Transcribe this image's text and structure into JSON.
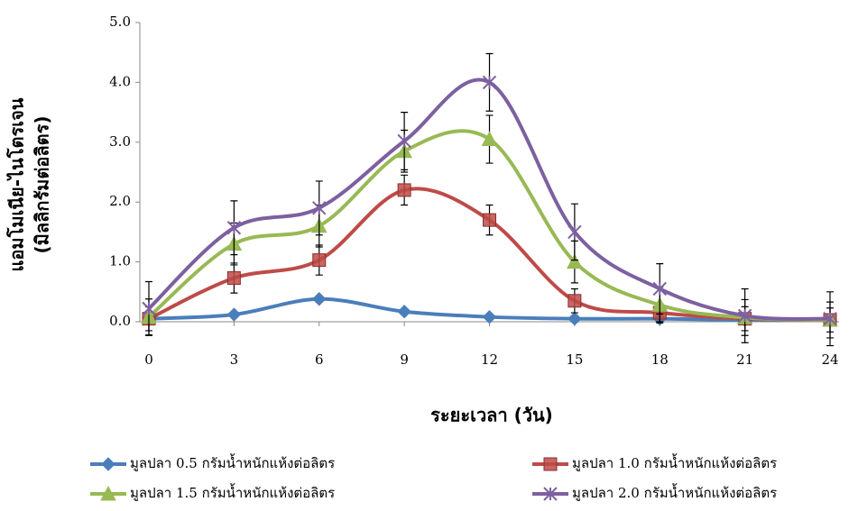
{
  "chart_data": {
    "type": "line",
    "x_label": "ระยะเวลา (วัน)",
    "y_label": [
      "แอมโมเนีย-ไนโตรเจน",
      "(มิลลิกรัมต่อลิตร)"
    ],
    "x": [
      0,
      3,
      6,
      9,
      12,
      15,
      18,
      21,
      24
    ],
    "xlim": [
      0,
      24
    ],
    "xticks": [
      0,
      3,
      6,
      9,
      12,
      15,
      18,
      21,
      24
    ],
    "ylim": [
      0,
      5
    ],
    "yticks": [
      {
        "value": 0,
        "label": "0.0"
      },
      {
        "value": 1,
        "label": "1.0"
      },
      {
        "value": 2,
        "label": "2.0"
      },
      {
        "value": 3,
        "label": "3.0"
      },
      {
        "value": 4,
        "label": "4.0"
      },
      {
        "value": 5,
        "label": "5.0"
      }
    ],
    "smooth": true,
    "series": [
      {
        "name": "มูลปลา 0.5 กรัมน้ำหนักแห้งต่อลิตร",
        "color": "#4a7ebb",
        "marker": "diamond",
        "values": [
          0.05,
          0.12,
          0.38,
          0.17,
          0.08,
          0.05,
          0.05,
          0.03,
          0.03
        ],
        "errors": [
          0.03,
          0.04,
          0.05,
          0.04,
          0.03,
          0.02,
          0.02,
          0.02,
          0.02
        ]
      },
      {
        "name": "มูลปลา 1.0 กรัมน้ำหนักแห้งต่อลิตร",
        "color": "#be4b48",
        "marker": "square",
        "values": [
          0.05,
          0.73,
          1.03,
          2.2,
          1.7,
          0.35,
          0.15,
          0.05,
          0.03
        ],
        "errors": [
          0.2,
          0.25,
          0.25,
          0.25,
          0.25,
          0.2,
          0.15,
          0.2,
          0.2
        ]
      },
      {
        "name": "มูลปลา 1.5 กรัมน้ำหนักแห้งต่อลิตร",
        "color": "#98b954",
        "marker": "triangle",
        "values": [
          0.08,
          1.3,
          1.6,
          2.85,
          3.05,
          1.0,
          0.28,
          0.07,
          0.03
        ],
        "errors": [
          0.3,
          0.35,
          0.35,
          0.35,
          0.4,
          0.35,
          0.3,
          0.3,
          0.3
        ]
      },
      {
        "name": "มูลปลา 2.0 กรัมน้ำหนักแห้งต่อลิตร",
        "color": "#7d60a0",
        "marker": "star",
        "values": [
          0.22,
          1.57,
          1.9,
          3.02,
          4.0,
          1.5,
          0.55,
          0.1,
          0.05
        ],
        "errors": [
          0.45,
          0.45,
          0.45,
          0.48,
          0.48,
          0.47,
          0.42,
          0.45,
          0.45
        ]
      }
    ]
  }
}
